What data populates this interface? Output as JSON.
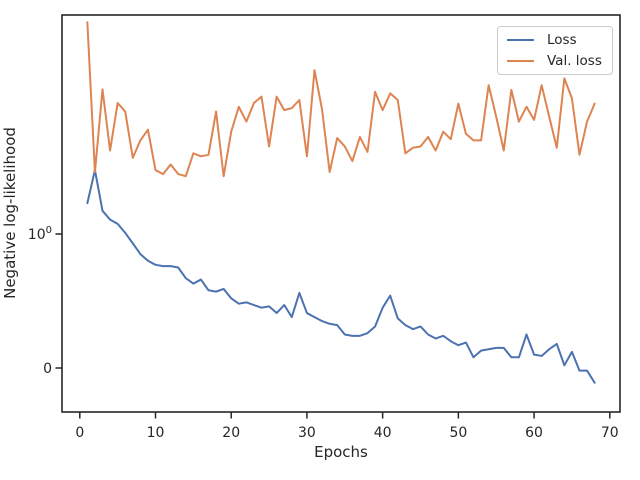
{
  "figure": {
    "axes": {
      "xlabel": "Epochs",
      "ylabel": "Negative log-likelihood",
      "spine_color": "#262626",
      "tick_color": "#262626",
      "text_color": "#262626",
      "xticks": [
        0,
        10,
        20,
        30,
        40,
        50,
        60,
        70
      ],
      "yticks": [
        {
          "value": 1,
          "base": "10",
          "exp": "0"
        },
        {
          "value": 0,
          "base": "0",
          "exp": ""
        }
      ]
    },
    "legend": {
      "entries": [
        {
          "label": "Loss",
          "color": "#4C72B0"
        },
        {
          "label": "Val. loss",
          "color": "#DD8452"
        }
      ]
    }
  },
  "chart_data": {
    "type": "line",
    "title": "",
    "xlabel": "Epochs",
    "ylabel": "Negative log-likelihood",
    "yscale": "symlog",
    "grid": false,
    "legend_position": "upper right",
    "xlim": [
      -2.35,
      71.35
    ],
    "xticks": [
      0,
      10,
      20,
      30,
      40,
      50,
      60,
      70
    ],
    "x": [
      1,
      2,
      3,
      4,
      5,
      6,
      7,
      8,
      9,
      10,
      11,
      12,
      13,
      14,
      15,
      16,
      17,
      18,
      19,
      20,
      21,
      22,
      23,
      24,
      25,
      26,
      27,
      28,
      29,
      30,
      31,
      32,
      33,
      34,
      35,
      36,
      37,
      38,
      39,
      40,
      41,
      42,
      43,
      44,
      45,
      46,
      47,
      48,
      49,
      50,
      51,
      52,
      53,
      54,
      55,
      56,
      57,
      58,
      59,
      60,
      61,
      62,
      63,
      64,
      65,
      66,
      67,
      68
    ],
    "series": [
      {
        "name": "Loss",
        "color": "#4C72B0",
        "values": [
          1.7,
          3.0,
          1.49,
          1.28,
          1.19,
          1.02,
          0.93,
          0.85,
          0.8,
          0.77,
          0.76,
          0.76,
          0.75,
          0.67,
          0.63,
          0.66,
          0.58,
          0.57,
          0.59,
          0.52,
          0.48,
          0.49,
          0.47,
          0.45,
          0.46,
          0.41,
          0.47,
          0.38,
          0.56,
          0.41,
          0.38,
          0.35,
          0.33,
          0.32,
          0.25,
          0.24,
          0.24,
          0.26,
          0.31,
          0.45,
          0.54,
          0.37,
          0.32,
          0.29,
          0.31,
          0.25,
          0.22,
          0.24,
          0.2,
          0.17,
          0.19,
          0.08,
          0.13,
          0.14,
          0.15,
          0.15,
          0.08,
          0.08,
          0.25,
          0.1,
          0.09,
          0.14,
          0.18,
          0.02,
          0.12,
          -0.02,
          -0.02,
          -0.11
        ]
      },
      {
        "name": "Val. loss",
        "color": "#DD8452",
        "values": [
          38.0,
          2.9,
          12.0,
          4.2,
          9.5,
          8.2,
          3.7,
          5.0,
          6.0,
          3.0,
          2.8,
          3.3,
          2.8,
          2.7,
          4.0,
          3.8,
          3.9,
          8.2,
          2.7,
          5.8,
          8.9,
          6.9,
          9.5,
          10.6,
          4.5,
          10.6,
          8.4,
          8.7,
          10.0,
          3.8,
          16.7,
          8.5,
          2.9,
          5.2,
          4.5,
          3.5,
          5.3,
          4.1,
          11.5,
          8.4,
          11.2,
          10.0,
          4.0,
          4.4,
          4.5,
          5.3,
          4.2,
          5.8,
          5.1,
          9.4,
          5.6,
          5.0,
          5.0,
          12.9,
          7.5,
          4.2,
          11.9,
          6.9,
          8.9,
          7.1,
          12.9,
          7.5,
          4.4,
          14.5,
          10.3,
          3.9,
          6.9,
          9.4
        ]
      }
    ]
  }
}
